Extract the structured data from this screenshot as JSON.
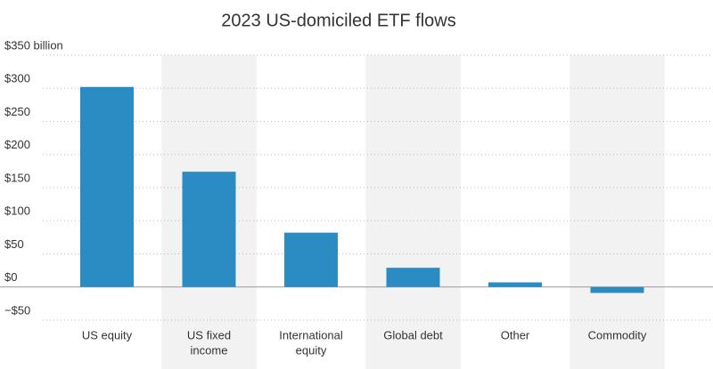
{
  "chart_data": {
    "type": "bar",
    "title": "2023 US-domiciled ETF flows",
    "categories": [
      [
        "US equity"
      ],
      [
        "US fixed",
        "income"
      ],
      [
        "International",
        "equity"
      ],
      [
        "Global debt"
      ],
      [
        "Other"
      ],
      [
        "Commodity"
      ]
    ],
    "values": [
      302,
      174,
      82,
      29,
      7,
      -9
    ],
    "color": "#2b8cc4",
    "ylim": [
      -50,
      350
    ],
    "yticks": [
      {
        "value": -50,
        "label": "−$50"
      },
      {
        "value": 0,
        "label": "$0"
      },
      {
        "value": 50,
        "label": "$50"
      },
      {
        "value": 100,
        "label": "$100"
      },
      {
        "value": 150,
        "label": "$150"
      },
      {
        "value": 200,
        "label": "$200"
      },
      {
        "value": 250,
        "label": "$250"
      },
      {
        "value": 300,
        "label": "$300"
      },
      {
        "value": 350,
        "label": "$350 billion"
      }
    ],
    "grid": true
  }
}
